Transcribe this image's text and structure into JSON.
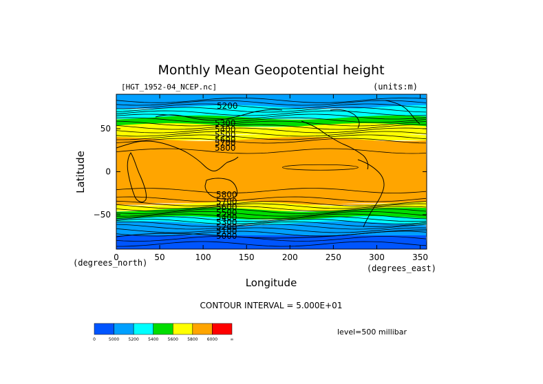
{
  "chart_data": {
    "type": "heatmap",
    "title": "Monthly Mean Geopotential height",
    "file_label": "[HGT_1952-04_NCEP.nc]",
    "units_label": "(units:m)",
    "xlabel": "Longitude",
    "ylabel": "Latitude",
    "x_unit_label": "(degrees_east)",
    "y_unit_label": "(degrees_north)",
    "xlim": [
      0,
      357.5
    ],
    "ylim": [
      -90,
      90
    ],
    "x_ticks": [
      0,
      50,
      100,
      150,
      200,
      250,
      300,
      350
    ],
    "y_ticks": [
      50,
      0,
      -50
    ],
    "y_tick_labels": [
      "50",
      "0",
      "−50"
    ],
    "contour_interval_text": "CONTOUR INTERVAL = 5.000E+01",
    "level_text": "level=500 millibar",
    "contour_labels_north": [
      "5200",
      "5300",
      "5400",
      "5500",
      "5600",
      "5700",
      "5800"
    ],
    "contour_labels_south": [
      "5800",
      "5700",
      "5600",
      "5500",
      "5400",
      "5300",
      "5200",
      "5100",
      "5000"
    ],
    "colorbar": {
      "colors": [
        "#0055ff",
        "#00a0ff",
        "#00ffff",
        "#00dd00",
        "#ffff00",
        "#ffa500",
        "#ff0000"
      ],
      "tick_labels": [
        "0",
        "5000",
        "5200",
        "5400",
        "5600",
        "5800",
        "6000",
        "∞"
      ]
    },
    "bands_by_latitude": [
      {
        "lat": 90,
        "color": "#00a0ff"
      },
      {
        "lat": 75,
        "color": "#00ffff"
      },
      {
        "lat": 63,
        "color": "#00dd00"
      },
      {
        "lat": 54,
        "color": "#ffff00"
      },
      {
        "lat": 45,
        "color": "#ffff00"
      },
      {
        "lat": 38,
        "color": "#ffa500"
      },
      {
        "lat": -35,
        "color": "#ffa500"
      },
      {
        "lat": -37,
        "color": "#ffff00"
      },
      {
        "lat": -44,
        "color": "#00dd00"
      },
      {
        "lat": -54,
        "color": "#00ffff"
      },
      {
        "lat": -60,
        "color": "#00a0ff"
      },
      {
        "lat": -74,
        "color": "#0055ff"
      },
      {
        "lat": -90,
        "color": "#0055ff"
      }
    ]
  }
}
